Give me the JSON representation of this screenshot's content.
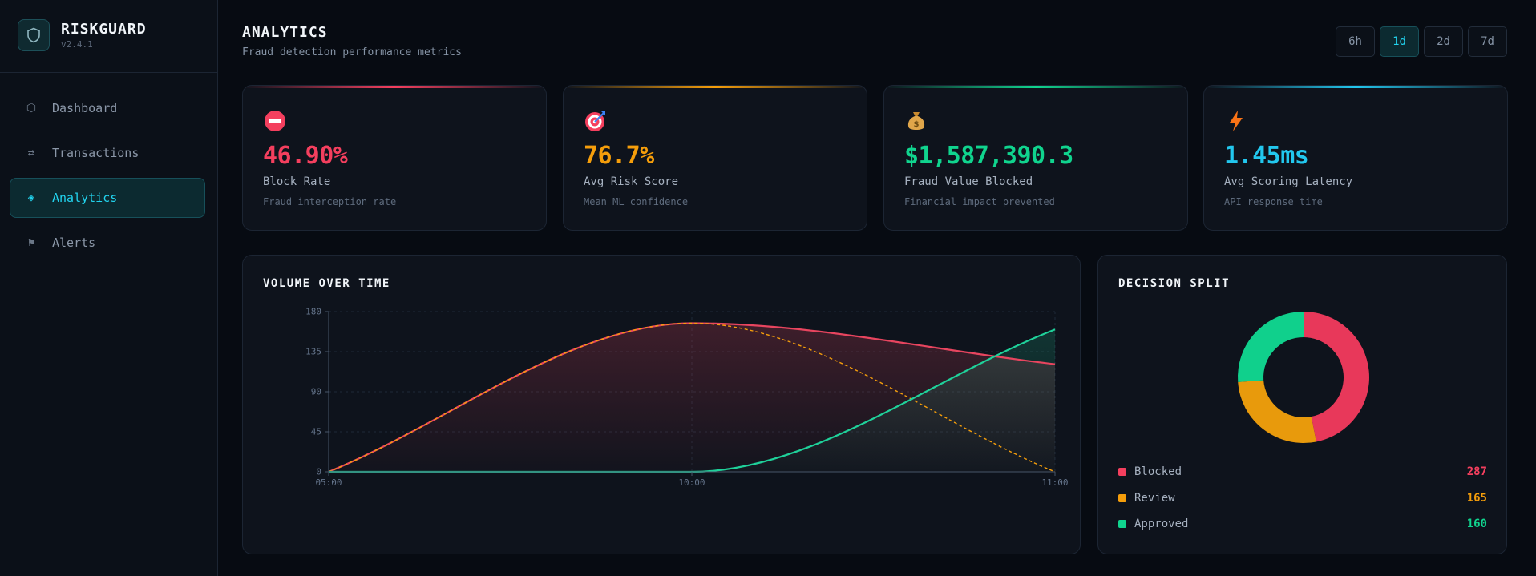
{
  "brand": {
    "name": "RISKGUARD",
    "version": "v2.4.1",
    "icon": "shield-icon"
  },
  "nav": [
    {
      "label": "Dashboard",
      "icon": "hexagon-icon",
      "active": false
    },
    {
      "label": "Transactions",
      "icon": "arrows-exchange-icon",
      "active": false
    },
    {
      "label": "Analytics",
      "icon": "diamond-icon",
      "active": true
    },
    {
      "label": "Alerts",
      "icon": "flag-icon",
      "active": false
    }
  ],
  "header": {
    "title": "ANALYTICS",
    "subtitle": "Fraud detection performance metrics"
  },
  "ranges": [
    {
      "label": "6h",
      "active": false
    },
    {
      "label": "1d",
      "active": true
    },
    {
      "label": "2d",
      "active": false
    },
    {
      "label": "7d",
      "active": false
    }
  ],
  "kpis": [
    {
      "value": "46.90%",
      "label": "Block Rate",
      "sub": "Fraud interception rate",
      "color": "#f43f5e",
      "icon": "no-entry-icon"
    },
    {
      "value": "76.7%",
      "label": "Avg Risk Score",
      "sub": "Mean ML confidence",
      "color": "#f59e0b",
      "icon": "target-icon"
    },
    {
      "value": "$1,587,390.3",
      "label": "Fraud Value Blocked",
      "sub": "Financial impact prevented",
      "color": "#10d48e",
      "icon": "money-bag-icon"
    },
    {
      "value": "1.45ms",
      "label": "Avg Scoring Latency",
      "sub": "API response time",
      "color": "#22c7ee",
      "icon": "lightning-icon"
    }
  ],
  "volume": {
    "title": "VOLUME OVER TIME",
    "chart_data": {
      "type": "line",
      "x": [
        "05:00",
        "10:00",
        "11:00"
      ],
      "ylim": [
        0,
        180
      ],
      "yticks": [
        0,
        45,
        90,
        135,
        180
      ],
      "grid": true,
      "series": [
        {
          "color": "#e8455f",
          "style": "solid",
          "area": true,
          "points": [
            [
              0,
              0
            ],
            [
              0.5,
              167
            ],
            [
              1,
              121
            ]
          ]
        },
        {
          "color": "#f59e0b",
          "style": "dashed",
          "points": [
            [
              0,
              0
            ],
            [
              0.5,
              167
            ],
            [
              1,
              0
            ]
          ]
        },
        {
          "color": "#1fd19a",
          "style": "solid",
          "area": true,
          "points": [
            [
              0,
              0
            ],
            [
              0.5,
              0
            ],
            [
              1,
              160
            ]
          ]
        }
      ]
    }
  },
  "split": {
    "title": "DECISION SPLIT",
    "chart_data": {
      "type": "pie",
      "labels": [
        "Blocked",
        "Review",
        "Approved"
      ],
      "values": [
        287,
        165,
        160
      ],
      "colors": [
        "#e8385a",
        "#e89a0c",
        "#10d08c"
      ]
    }
  }
}
